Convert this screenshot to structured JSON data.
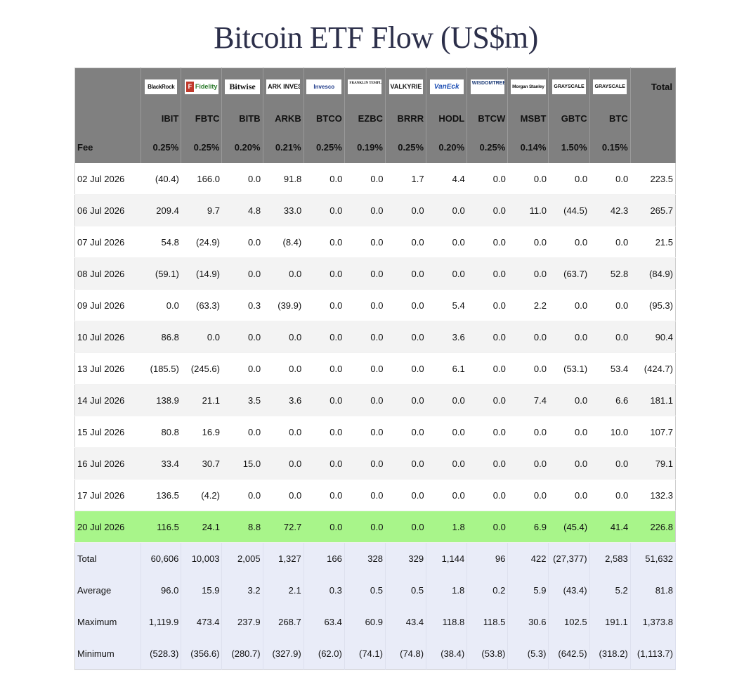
{
  "title": "Bitcoin ETF Flow (US$m)",
  "header": {
    "logos": [
      {
        "ticker": "IBIT",
        "logo_text": "BlackRock",
        "class": "blackrock"
      },
      {
        "ticker": "FBTC",
        "logo_text": "Fidelity",
        "class": "fidelity"
      },
      {
        "ticker": "BITB",
        "logo_text": "Bitwise",
        "class": "bitwise"
      },
      {
        "ticker": "ARKB",
        "logo_text": "ARK INVEST",
        "class": "ark"
      },
      {
        "ticker": "BTCO",
        "logo_text": "Invesco",
        "class": "invesco"
      },
      {
        "ticker": "EZBC",
        "logo_text": "FRANKLIN TEMPLETON",
        "class": "franklin"
      },
      {
        "ticker": "BRRR",
        "logo_text": "VALKYRIE",
        "class": "valkyrie"
      },
      {
        "ticker": "HODL",
        "logo_text": "VanEck",
        "class": "vaneck"
      },
      {
        "ticker": "BTCW",
        "logo_text": "WISDOMTREE",
        "class": "wisdomtree"
      },
      {
        "ticker": "MSBT",
        "logo_text": "Morgan Stanley",
        "class": "morgan"
      },
      {
        "ticker": "GBTC",
        "logo_text": "GRAYSCALE",
        "class": "grayscale"
      },
      {
        "ticker": "BTC",
        "logo_text": "GRAYSCALE",
        "class": "grayscale"
      }
    ],
    "total_label": "Total",
    "fee_label": "Fee",
    "fees": [
      "0.25%",
      "0.25%",
      "0.20%",
      "0.21%",
      "0.25%",
      "0.19%",
      "0.25%",
      "0.20%",
      "0.25%",
      "0.14%",
      "1.50%",
      "0.15%"
    ]
  },
  "rows": [
    {
      "date": "02 Jul 2026",
      "values": [
        "(40.4)",
        "166.0",
        "0.0",
        "91.8",
        "0.0",
        "0.0",
        "1.7",
        "4.4",
        "0.0",
        "0.0",
        "0.0",
        "0.0"
      ],
      "total": "223.5"
    },
    {
      "date": "06 Jul 2026",
      "values": [
        "209.4",
        "9.7",
        "4.8",
        "33.0",
        "0.0",
        "0.0",
        "0.0",
        "0.0",
        "0.0",
        "11.0",
        "(44.5)",
        "42.3"
      ],
      "total": "265.7"
    },
    {
      "date": "07 Jul 2026",
      "values": [
        "54.8",
        "(24.9)",
        "0.0",
        "(8.4)",
        "0.0",
        "0.0",
        "0.0",
        "0.0",
        "0.0",
        "0.0",
        "0.0",
        "0.0"
      ],
      "total": "21.5"
    },
    {
      "date": "08 Jul 2026",
      "values": [
        "(59.1)",
        "(14.9)",
        "0.0",
        "0.0",
        "0.0",
        "0.0",
        "0.0",
        "0.0",
        "0.0",
        "0.0",
        "(63.7)",
        "52.8"
      ],
      "total": "(84.9)"
    },
    {
      "date": "09 Jul 2026",
      "values": [
        "0.0",
        "(63.3)",
        "0.3",
        "(39.9)",
        "0.0",
        "0.0",
        "0.0",
        "5.4",
        "0.0",
        "2.2",
        "0.0",
        "0.0"
      ],
      "total": "(95.3)"
    },
    {
      "date": "10 Jul 2026",
      "values": [
        "86.8",
        "0.0",
        "0.0",
        "0.0",
        "0.0",
        "0.0",
        "0.0",
        "3.6",
        "0.0",
        "0.0",
        "0.0",
        "0.0"
      ],
      "total": "90.4"
    },
    {
      "date": "13 Jul 2026",
      "values": [
        "(185.5)",
        "(245.6)",
        "0.0",
        "0.0",
        "0.0",
        "0.0",
        "0.0",
        "6.1",
        "0.0",
        "0.0",
        "(53.1)",
        "53.4"
      ],
      "total": "(424.7)"
    },
    {
      "date": "14 Jul 2026",
      "values": [
        "138.9",
        "21.1",
        "3.5",
        "3.6",
        "0.0",
        "0.0",
        "0.0",
        "0.0",
        "0.0",
        "7.4",
        "0.0",
        "6.6"
      ],
      "total": "181.1"
    },
    {
      "date": "15 Jul 2026",
      "values": [
        "80.8",
        "16.9",
        "0.0",
        "0.0",
        "0.0",
        "0.0",
        "0.0",
        "0.0",
        "0.0",
        "0.0",
        "0.0",
        "10.0"
      ],
      "total": "107.7"
    },
    {
      "date": "16 Jul 2026",
      "values": [
        "33.4",
        "30.7",
        "15.0",
        "0.0",
        "0.0",
        "0.0",
        "0.0",
        "0.0",
        "0.0",
        "0.0",
        "0.0",
        "0.0"
      ],
      "total": "79.1"
    },
    {
      "date": "17 Jul 2026",
      "values": [
        "136.5",
        "(4.2)",
        "0.0",
        "0.0",
        "0.0",
        "0.0",
        "0.0",
        "0.0",
        "0.0",
        "0.0",
        "0.0",
        "0.0"
      ],
      "total": "132.3"
    },
    {
      "date": "20 Jul 2026",
      "values": [
        "116.5",
        "24.1",
        "8.8",
        "72.7",
        "0.0",
        "0.0",
        "0.0",
        "1.8",
        "0.0",
        "6.9",
        "(45.4)",
        "41.4"
      ],
      "total": "226.8",
      "highlight": true
    }
  ],
  "stats": [
    {
      "label": "Total",
      "values": [
        "60,606",
        "10,003",
        "2,005",
        "1,327",
        "166",
        "328",
        "329",
        "1,144",
        "96",
        "422",
        "(27,377)",
        "2,583"
      ],
      "total": "51,632"
    },
    {
      "label": "Average",
      "values": [
        "96.0",
        "15.9",
        "3.2",
        "2.1",
        "0.3",
        "0.5",
        "0.5",
        "1.8",
        "0.2",
        "5.9",
        "(43.4)",
        "5.2"
      ],
      "total": "81.8"
    },
    {
      "label": "Maximum",
      "values": [
        "1,119.9",
        "473.4",
        "237.9",
        "268.7",
        "63.4",
        "60.9",
        "43.4",
        "118.8",
        "118.5",
        "30.6",
        "102.5",
        "191.1"
      ],
      "total": "1,373.8"
    },
    {
      "label": "Minimum",
      "values": [
        "(528.3)",
        "(356.6)",
        "(280.7)",
        "(327.9)",
        "(62.0)",
        "(74.1)",
        "(74.8)",
        "(38.4)",
        "(53.8)",
        "(5.3)",
        "(642.5)",
        "(318.2)"
      ],
      "total": "(1,113.7)"
    }
  ],
  "colors": {
    "header_bg": "#808080",
    "negative": "#e0202e",
    "zero": "#c8c8c8",
    "highlight_row": "#a8f58a",
    "stats_bg": "#e9ecf8"
  }
}
